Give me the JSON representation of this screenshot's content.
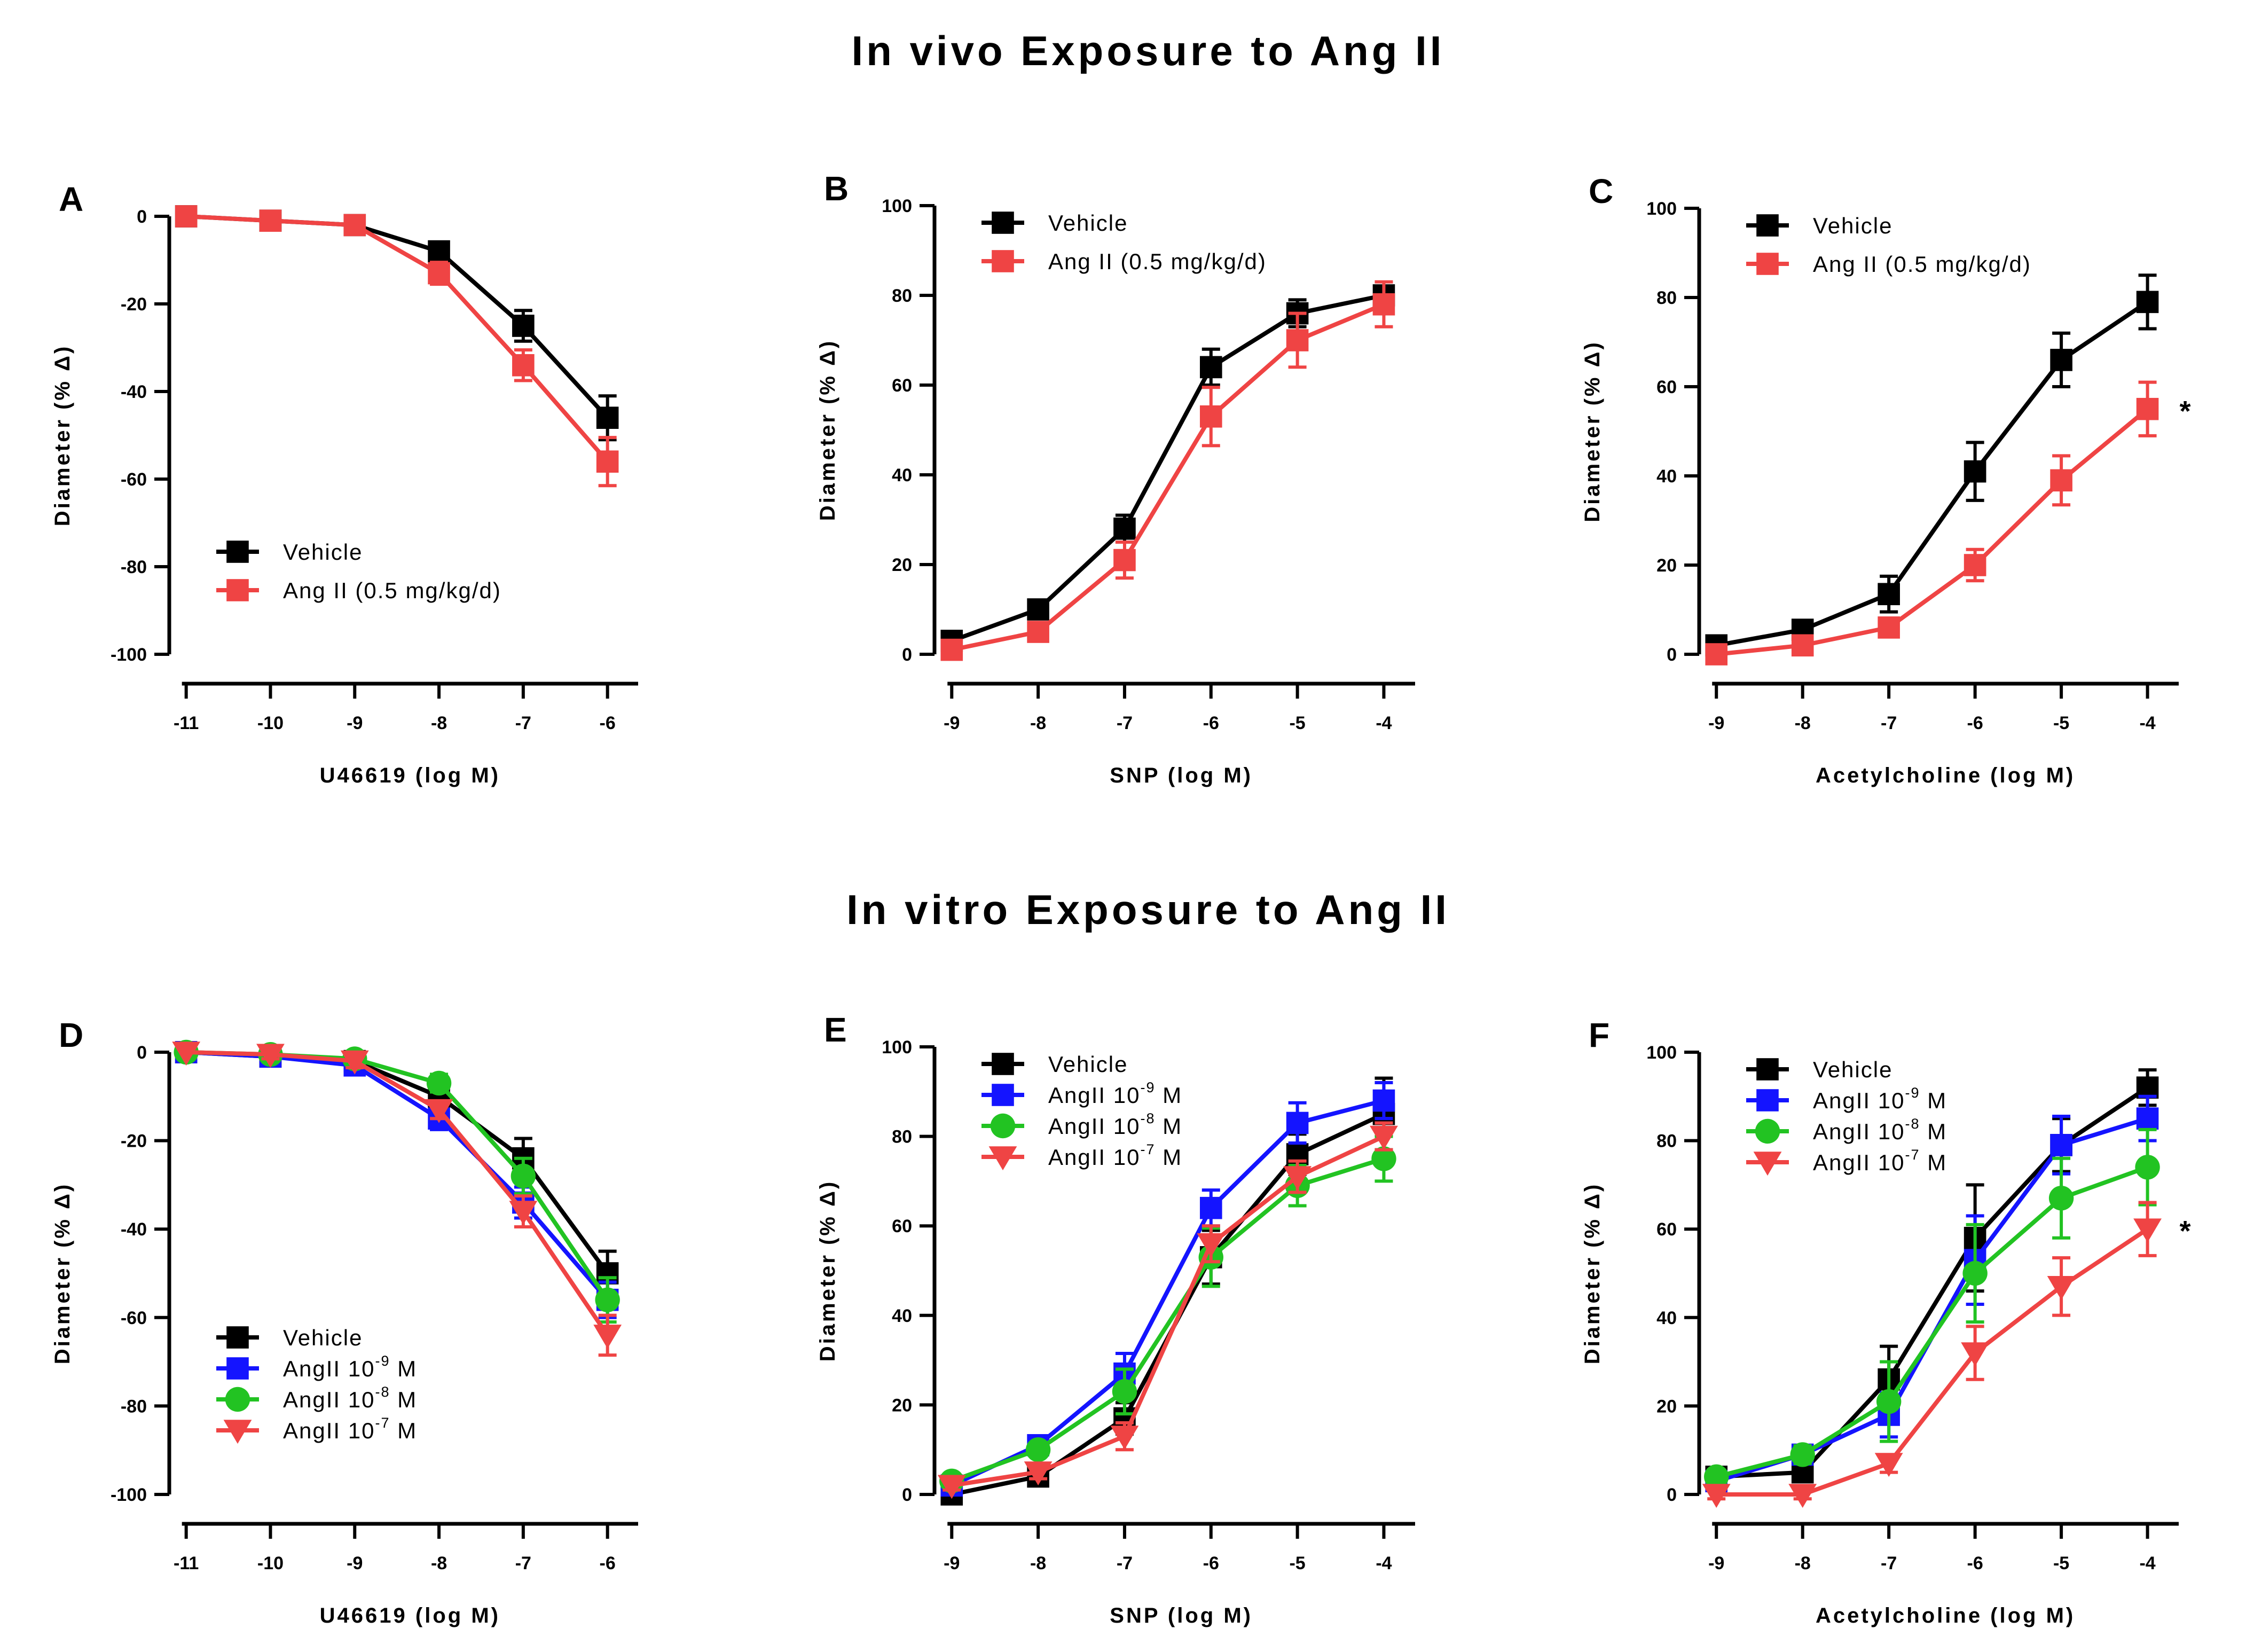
{
  "figure": {
    "section_titles": [
      "In vivo Exposure to Ang II",
      "In vitro Exposure to Ang II"
    ]
  },
  "series_styles": {
    "Vehicle": {
      "color": "#000000",
      "marker": "square"
    },
    "Ang II (0.5 mg/kg/d)": {
      "color": "#ef4444",
      "marker": "square"
    },
    "AngII 10-9 M": {
      "color": "#1414ff",
      "marker": "square"
    },
    "AngII 10-8 M": {
      "color": "#22c322",
      "marker": "circle"
    },
    "AngII 10-7 M": {
      "color": "#ef4444",
      "marker": "triangle-down"
    }
  },
  "chart_data": [
    {
      "panel": "A",
      "type": "line",
      "xlabel": "U46619 (log M)",
      "ylabel": "Diameter (% Δ)",
      "x": [
        -11,
        -10,
        -9,
        -8,
        -7,
        -6
      ],
      "xlim": [
        -11.15,
        -5.7
      ],
      "ylim": [
        -100,
        0
      ],
      "xticks": [
        -11,
        -10,
        -9,
        -8,
        -7,
        -6
      ],
      "yticks": [
        0,
        -20,
        -40,
        -60,
        -80,
        -100
      ],
      "legend": "bottom-left",
      "series": [
        {
          "name": "Vehicle",
          "values": [
            0,
            -1,
            -2,
            -8,
            -25,
            -46
          ],
          "errors": [
            0,
            1.5,
            1.5,
            1.5,
            3.5,
            5
          ]
        },
        {
          "name": "Ang II (0.5 mg/kg/d)",
          "values": [
            0,
            -1,
            -2,
            -13,
            -34,
            -56
          ],
          "errors": [
            0,
            1,
            1.5,
            2.5,
            3.5,
            5.5
          ]
        }
      ]
    },
    {
      "panel": "B",
      "type": "line",
      "xlabel": "SNP (log M)",
      "ylabel": "Diameter (% Δ)",
      "x": [
        -9,
        -8,
        -7,
        -6,
        -5,
        -4
      ],
      "xlim": [
        -9.15,
        -3.7
      ],
      "ylim": [
        0,
        100
      ],
      "xticks": [
        -9,
        -8,
        -7,
        -6,
        -5,
        -4
      ],
      "yticks": [
        0,
        20,
        40,
        60,
        80,
        100
      ],
      "legend": "top-left",
      "series": [
        {
          "name": "Vehicle",
          "values": [
            3,
            10,
            28,
            64,
            76,
            80
          ],
          "errors": [
            1,
            1.5,
            3,
            4,
            3,
            2
          ]
        },
        {
          "name": "Ang II (0.5 mg/kg/d)",
          "values": [
            1,
            5,
            21,
            53,
            70,
            78
          ],
          "errors": [
            1,
            1.5,
            4,
            6.5,
            6,
            5
          ]
        }
      ]
    },
    {
      "panel": "C",
      "type": "line",
      "xlabel": "Acetylcholine (log M)",
      "ylabel": "Diameter (% Δ)",
      "x": [
        -9,
        -8,
        -7,
        -6,
        -5,
        -4
      ],
      "xlim": [
        -9.15,
        -3.7
      ],
      "ylim": [
        0,
        100
      ],
      "xticks": [
        -9,
        -8,
        -7,
        -6,
        -5,
        -4
      ],
      "yticks": [
        0,
        20,
        40,
        60,
        80,
        100
      ],
      "legend": "top-left",
      "annotation": "*",
      "series": [
        {
          "name": "Vehicle",
          "values": [
            2,
            5.5,
            13.5,
            41,
            66,
            79
          ],
          "errors": [
            1,
            1.5,
            4,
            6.5,
            6,
            6
          ]
        },
        {
          "name": "Ang II (0.5 mg/kg/d)",
          "values": [
            0,
            2,
            6,
            20,
            39,
            55
          ],
          "errors": [
            1,
            1,
            2,
            3.5,
            5.5,
            6
          ]
        }
      ]
    },
    {
      "panel": "D",
      "type": "line",
      "xlabel": "U46619 (log M)",
      "ylabel": "Diameter (% Δ)",
      "x": [
        -11,
        -10,
        -9,
        -8,
        -7,
        -6
      ],
      "xlim": [
        -11.15,
        -5.7
      ],
      "ylim": [
        -100,
        0
      ],
      "xticks": [
        -11,
        -10,
        -9,
        -8,
        -7,
        -6
      ],
      "yticks": [
        0,
        -20,
        -40,
        -60,
        -80,
        -100
      ],
      "legend": "bottom-left",
      "series": [
        {
          "name": "Vehicle",
          "values": [
            0,
            -1,
            -2,
            -10,
            -24,
            -50
          ],
          "errors": [
            0,
            1,
            1.5,
            2.5,
            4.5,
            5
          ]
        },
        {
          "name": "AngII 10-9 M",
          "values": [
            0,
            -1,
            -3,
            -15,
            -34,
            -56
          ],
          "errors": [
            0,
            1,
            1.5,
            2.5,
            3.5,
            4
          ]
        },
        {
          "name": "AngII 10-8 M",
          "values": [
            0,
            -0.5,
            -1.5,
            -7,
            -28,
            -56
          ],
          "errors": [
            0,
            1,
            1.5,
            2,
            4,
            5
          ]
        },
        {
          "name": "AngII 10-7 M",
          "values": [
            0,
            -0.5,
            -2,
            -13,
            -36,
            -64
          ],
          "errors": [
            0,
            1,
            1.5,
            2,
            3.5,
            4.5
          ]
        }
      ]
    },
    {
      "panel": "E",
      "type": "line",
      "xlabel": "SNP (log M)",
      "ylabel": "Diameter (% Δ)",
      "x": [
        -9,
        -8,
        -7,
        -6,
        -5,
        -4
      ],
      "xlim": [
        -9.15,
        -3.7
      ],
      "ylim": [
        0,
        100
      ],
      "xticks": [
        -9,
        -8,
        -7,
        -6,
        -5,
        -4
      ],
      "yticks": [
        0,
        20,
        40,
        60,
        80,
        100
      ],
      "legend": "top-left",
      "series": [
        {
          "name": "Vehicle",
          "values": [
            0,
            4,
            17,
            53,
            76,
            85
          ],
          "errors": [
            1,
            1.5,
            3.5,
            6,
            4.5,
            8
          ]
        },
        {
          "name": "AngII 10-9 M",
          "values": [
            2,
            11,
            27,
            64,
            83,
            88
          ],
          "errors": [
            1,
            1.5,
            4.5,
            4,
            4.5,
            4
          ]
        },
        {
          "name": "AngII 10-8 M",
          "values": [
            3,
            10,
            23,
            53,
            69,
            75
          ],
          "errors": [
            1,
            1.5,
            5,
            6.5,
            4.5,
            5
          ]
        },
        {
          "name": "AngII 10-7 M",
          "values": [
            2,
            5,
            13,
            56,
            71,
            80
          ],
          "errors": [
            1,
            1.5,
            3,
            4,
            3.5,
            3
          ]
        }
      ]
    },
    {
      "panel": "F",
      "type": "line",
      "xlabel": "Acetylcholine (log M)",
      "ylabel": "Diameter (% Δ)",
      "x": [
        -9,
        -8,
        -7,
        -6,
        -5,
        -4
      ],
      "xlim": [
        -9.15,
        -3.7
      ],
      "ylim": [
        0,
        100
      ],
      "xticks": [
        -9,
        -8,
        -7,
        -6,
        -5,
        -4
      ],
      "yticks": [
        0,
        20,
        40,
        60,
        80,
        100
      ],
      "legend": "top-left",
      "annotation": "*",
      "series": [
        {
          "name": "Vehicle",
          "values": [
            4,
            5,
            26,
            58,
            79,
            92
          ],
          "errors": [
            1,
            2,
            7.5,
            12,
            6,
            4
          ]
        },
        {
          "name": "AngII 10-9 M",
          "values": [
            3,
            9,
            18,
            53,
            79,
            85
          ],
          "errors": [
            1,
            2,
            5,
            10,
            6.5,
            5
          ]
        },
        {
          "name": "AngII 10-8 M",
          "values": [
            4,
            9,
            21,
            50,
            67,
            74
          ],
          "errors": [
            1,
            2,
            9,
            11,
            9,
            8.5
          ]
        },
        {
          "name": "AngII 10-7 M",
          "values": [
            0,
            0,
            7,
            32,
            47,
            60
          ],
          "errors": [
            1,
            1,
            2,
            6,
            6.5,
            6
          ]
        }
      ]
    }
  ]
}
